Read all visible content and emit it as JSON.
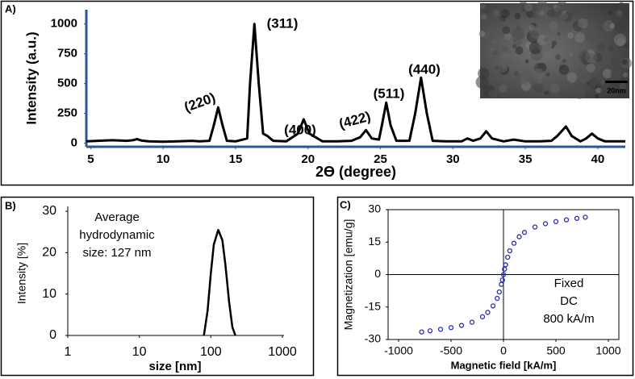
{
  "chart_data": [
    {
      "type": "line",
      "panel_label": "A)",
      "x_label": "2ϴ (degree)",
      "y_label": "Intensity (a.u.)",
      "x": [
        4.7,
        5.5,
        6.5,
        7.5,
        7.9,
        8.2,
        8.5,
        9,
        10,
        11,
        12,
        12.5,
        13.2,
        13.5,
        13.8,
        14.1,
        14.4,
        15,
        15.8,
        16.0,
        16.3,
        16.6,
        16.9,
        17.2,
        17.6,
        18.5,
        19.3,
        19.7,
        20.1,
        21,
        22,
        23,
        23.6,
        24,
        24.4,
        24.9,
        25.1,
        25.4,
        25.7,
        26.1,
        27,
        27.4,
        27.8,
        28.2,
        28.6,
        29.5,
        30.6,
        31,
        31.4,
        31.9,
        32.3,
        32.7,
        33.5,
        34.2,
        35,
        36,
        36.8,
        37.2,
        37.8,
        38.2,
        38.8,
        39.2,
        39.6,
        40,
        40.5,
        41.9
      ],
      "values": [
        15,
        20,
        25,
        20,
        25,
        35,
        22,
        15,
        12,
        15,
        20,
        15,
        20,
        150,
        300,
        150,
        20,
        15,
        40,
        500,
        1000,
        500,
        80,
        60,
        20,
        15,
        80,
        200,
        80,
        15,
        15,
        20,
        50,
        110,
        40,
        30,
        150,
        340,
        150,
        20,
        20,
        250,
        550,
        250,
        20,
        15,
        15,
        40,
        20,
        40,
        100,
        40,
        15,
        30,
        15,
        15,
        20,
        60,
        140,
        60,
        15,
        40,
        80,
        40,
        15,
        15
      ],
      "color": "#000000",
      "axis_color": "#2f5597",
      "xlim": [
        4.7,
        41.9
      ],
      "xticks": [
        5,
        10,
        15,
        20,
        25,
        30,
        35,
        40
      ],
      "ylim": [
        -30,
        1120
      ],
      "yticks": [
        0,
        250,
        500,
        750,
        1000
      ],
      "peak_labels": [
        "(220)",
        "(311)",
        "(400)",
        "(422)",
        "(511)",
        "(440)"
      ],
      "inset_scale_label": "20nm"
    },
    {
      "type": "line",
      "panel_label": "B)",
      "x_label": "size [nm]",
      "y_label": "Intensity [%]",
      "annotation": [
        "Average",
        "hydrodynamic",
        "size: 127 nm"
      ],
      "x": [
        80,
        90,
        100,
        110,
        127,
        145,
        160,
        180,
        200,
        220
      ],
      "values": [
        0,
        6,
        15,
        22,
        25.5,
        23,
        17,
        8,
        2,
        0
      ],
      "color": "#000000",
      "xscale": "log",
      "xlim": [
        1,
        1000
      ],
      "xticks": [
        1,
        10,
        100,
        1000
      ],
      "ylim": [
        0,
        30
      ],
      "yticks": [
        0,
        10,
        20,
        30
      ]
    },
    {
      "type": "scatter",
      "panel_label": "C)",
      "x_label": "Magnetic field [kA/m]",
      "y_label": "Magnetization [emu/g]",
      "annotation": [
        "Fixed",
        "DC",
        "800 kA/m"
      ],
      "x": [
        -780,
        -700,
        -600,
        -500,
        -400,
        -300,
        -200,
        -150,
        -100,
        -60,
        -40,
        -20,
        -10,
        0,
        10,
        20,
        40,
        60,
        100,
        150,
        200,
        300,
        400,
        500,
        600,
        700,
        780
      ],
      "values": [
        -26.5,
        -26,
        -25.3,
        -24.5,
        -23.5,
        -22,
        -19.5,
        -17.5,
        -14.5,
        -11,
        -8,
        -4.5,
        -2.5,
        0,
        2.5,
        4.5,
        8,
        11,
        14.5,
        17.5,
        19.5,
        22,
        23.5,
        24.5,
        25.3,
        26,
        26.5
      ],
      "color": "#2b2bb5",
      "xlim": [
        -1100,
        1100
      ],
      "xticks": [
        -1000,
        -500,
        0,
        500,
        1000
      ],
      "ylim": [
        -30,
        30
      ],
      "yticks": [
        -30,
        -15,
        0,
        15,
        30
      ]
    }
  ]
}
